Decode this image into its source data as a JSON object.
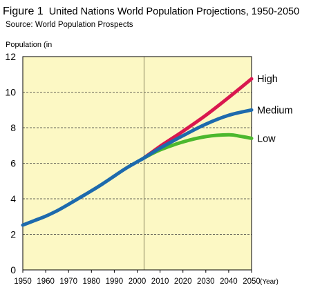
{
  "figure_label": "Figure 1",
  "chart_data": {
    "type": "line",
    "title": "United Nations World Population Projections, 1950-2050",
    "subtitle": "Source: World Population Prospects",
    "ylabel": "Population (in",
    "xlabel": "(Year)",
    "xlim": [
      1950,
      2050
    ],
    "ylim": [
      0,
      12
    ],
    "x_ticks": [
      "1950",
      "1960",
      "1970",
      "1980",
      "1990",
      "2000",
      "2010",
      "2020",
      "2030",
      "2040",
      "2050"
    ],
    "y_ticks": [
      "0",
      "2",
      "4",
      "6",
      "8",
      "10",
      "12"
    ],
    "grid": "horizontal dashed",
    "divider_year": 2003,
    "background_color": "#fcf8c4",
    "series": [
      {
        "name": "High",
        "color": "#d9184f",
        "points": [
          [
            2003,
            6.3
          ],
          [
            2010,
            6.95
          ],
          [
            2020,
            7.8
          ],
          [
            2030,
            8.7
          ],
          [
            2040,
            9.7
          ],
          [
            2050,
            10.75
          ]
        ]
      },
      {
        "name": "Medium",
        "color": "#1d6aad",
        "points": [
          [
            1950,
            2.52
          ],
          [
            1955,
            2.77
          ],
          [
            1960,
            3.02
          ],
          [
            1965,
            3.33
          ],
          [
            1970,
            3.69
          ],
          [
            1975,
            4.07
          ],
          [
            1980,
            4.45
          ],
          [
            1985,
            4.85
          ],
          [
            1990,
            5.28
          ],
          [
            1995,
            5.71
          ],
          [
            2000,
            6.08
          ],
          [
            2003,
            6.3
          ],
          [
            2010,
            6.85
          ],
          [
            2020,
            7.55
          ],
          [
            2030,
            8.2
          ],
          [
            2040,
            8.7
          ],
          [
            2050,
            9.0
          ]
        ]
      },
      {
        "name": "Low",
        "color": "#4cb82e",
        "points": [
          [
            2003,
            6.3
          ],
          [
            2010,
            6.75
          ],
          [
            2020,
            7.2
          ],
          [
            2030,
            7.5
          ],
          [
            2040,
            7.6
          ],
          [
            2045,
            7.52
          ],
          [
            2050,
            7.4
          ]
        ]
      }
    ]
  }
}
